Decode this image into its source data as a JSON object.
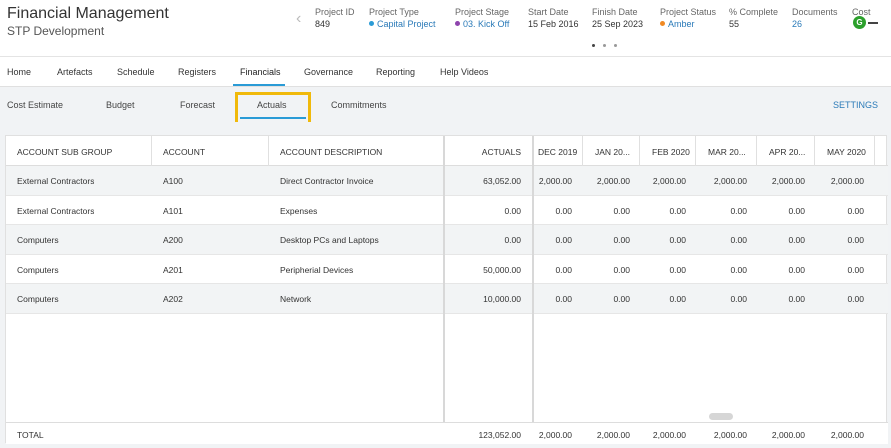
{
  "header": {
    "title": "Financial Management",
    "subtitle": "STP Development",
    "chevron": "‹",
    "fields": [
      {
        "label": "Project ID",
        "value": "849"
      },
      {
        "label": "Project Type",
        "value": "Capital Project",
        "dot_color": "#2a9bd6"
      },
      {
        "label": "Project Stage",
        "value": "03. Kick Off",
        "dot_color": "#8e44ad"
      },
      {
        "label": "Start Date",
        "value": "15 Feb 2016"
      },
      {
        "label": "Finish Date",
        "value": "25 Sep 2023"
      },
      {
        "label": "Project Status",
        "value": "Amber",
        "dot_color": "#f08a24"
      },
      {
        "label": "% Complete",
        "value": "55"
      },
      {
        "label": "Documents",
        "value": "26"
      },
      {
        "label": "Cost",
        "value": "G",
        "badge_color": "#2ca02c"
      }
    ]
  },
  "main_nav": {
    "items": [
      "Home",
      "Artefacts",
      "Schedule",
      "Registers",
      "Financials",
      "Governance",
      "Reporting",
      "Help Videos"
    ],
    "active": "Financials"
  },
  "sub_nav": {
    "items": [
      "Cost Estimate",
      "Budget",
      "Forecast",
      "Actuals",
      "Commitments"
    ],
    "active": "Actuals",
    "settings_label": "SETTINGS"
  },
  "table": {
    "columns": [
      "ACCOUNT SUB GROUP",
      "ACCOUNT",
      "ACCOUNT DESCRIPTION",
      "ACTUALS",
      "DEC 2019",
      "JAN 20...",
      "FEB 2020",
      "MAR 20...",
      "APR 20...",
      "MAY 2020"
    ],
    "rows": [
      [
        "External Contractors",
        "A100",
        "Direct Contractor Invoice",
        "63,052.00",
        "2,000.00",
        "2,000.00",
        "2,000.00",
        "2,000.00",
        "2,000.00",
        "2,000.00"
      ],
      [
        "External Contractors",
        "A101",
        "Expenses",
        "0.00",
        "0.00",
        "0.00",
        "0.00",
        "0.00",
        "0.00",
        "0.00"
      ],
      [
        "Computers",
        "A200",
        "Desktop PCs and Laptops",
        "0.00",
        "0.00",
        "0.00",
        "0.00",
        "0.00",
        "0.00",
        "0.00"
      ],
      [
        "Computers",
        "A201",
        "Peripherial Devices",
        "50,000.00",
        "0.00",
        "0.00",
        "0.00",
        "0.00",
        "0.00",
        "0.00"
      ],
      [
        "Computers",
        "A202",
        "Network",
        "10,000.00",
        "0.00",
        "0.00",
        "0.00",
        "0.00",
        "0.00",
        "0.00"
      ]
    ],
    "total": [
      "TOTAL",
      "123,052.00",
      "2,000.00",
      "2,000.00",
      "2,000.00",
      "2,000.00",
      "2,000.00",
      "2,000.00"
    ]
  },
  "colors": {
    "accent": "#2a9bd6",
    "highlight_box": "#f0b90b",
    "link": "#2a7ab8"
  }
}
